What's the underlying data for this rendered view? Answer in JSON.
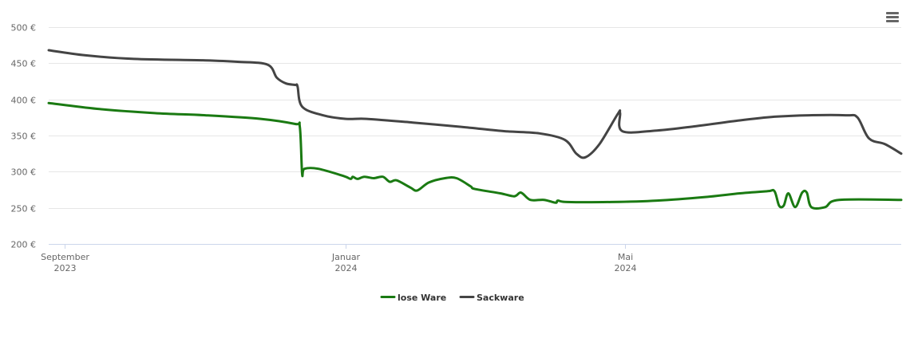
{
  "menu": {
    "icon": "hamburger-menu-icon"
  },
  "chart_data": {
    "type": "line",
    "title": "",
    "xlabel": "",
    "ylabel": "",
    "ylim": [
      200,
      500
    ],
    "y_ticks": [
      {
        "value": 500,
        "label": "500 €"
      },
      {
        "value": 450,
        "label": "450 €"
      },
      {
        "value": 400,
        "label": "400 €"
      },
      {
        "value": 350,
        "label": "350 €"
      },
      {
        "value": 300,
        "label": "300 €"
      },
      {
        "value": 250,
        "label": "250 €"
      },
      {
        "value": 200,
        "label": "200 €"
      }
    ],
    "x_range": [
      "2023-08-25",
      "2024-08-29"
    ],
    "x_ticks": [
      {
        "date": "2023-09-01",
        "line1": "September",
        "line2": "2023"
      },
      {
        "date": "2024-01-01",
        "line1": "Januar",
        "line2": "2024"
      },
      {
        "date": "2024-05-01",
        "line1": "Mai",
        "line2": "2024"
      }
    ],
    "grid": true,
    "legend_position": "bottom-center",
    "series": [
      {
        "name": "lose Ware",
        "color": "#1a7a12",
        "points": [
          [
            "2023-08-25",
            395
          ],
          [
            "2023-09-15",
            387
          ],
          [
            "2023-10-10",
            381
          ],
          [
            "2023-11-01",
            378
          ],
          [
            "2023-11-25",
            373
          ],
          [
            "2023-12-10",
            366
          ],
          [
            "2023-12-12",
            362
          ],
          [
            "2023-12-13",
            297
          ],
          [
            "2023-12-14",
            304
          ],
          [
            "2023-12-20",
            304
          ],
          [
            "2023-12-31",
            294
          ],
          [
            "2024-01-03",
            290
          ],
          [
            "2024-01-04",
            293
          ],
          [
            "2024-01-06",
            290
          ],
          [
            "2024-01-09",
            293
          ],
          [
            "2024-01-13",
            291
          ],
          [
            "2024-01-17",
            293
          ],
          [
            "2024-01-20",
            286
          ],
          [
            "2024-01-23",
            288
          ],
          [
            "2024-01-29",
            278
          ],
          [
            "2024-02-01",
            274
          ],
          [
            "2024-02-06",
            285
          ],
          [
            "2024-02-13",
            291
          ],
          [
            "2024-02-18",
            291
          ],
          [
            "2024-02-24",
            280
          ],
          [
            "2024-02-26",
            276
          ],
          [
            "2024-03-08",
            270
          ],
          [
            "2024-03-14",
            266
          ],
          [
            "2024-03-17",
            271
          ],
          [
            "2024-03-21",
            261
          ],
          [
            "2024-03-27",
            261
          ],
          [
            "2024-04-01",
            257
          ],
          [
            "2024-04-02",
            260
          ],
          [
            "2024-04-06",
            258
          ],
          [
            "2024-04-25",
            258
          ],
          [
            "2024-05-15",
            260
          ],
          [
            "2024-06-05",
            265
          ],
          [
            "2024-06-20",
            270
          ],
          [
            "2024-07-02",
            273
          ],
          [
            "2024-07-05",
            273
          ],
          [
            "2024-07-07",
            253
          ],
          [
            "2024-07-09",
            253
          ],
          [
            "2024-07-11",
            270
          ],
          [
            "2024-07-14",
            251
          ],
          [
            "2024-07-17",
            271
          ],
          [
            "2024-07-19",
            271
          ],
          [
            "2024-07-21",
            251
          ],
          [
            "2024-07-27",
            251
          ],
          [
            "2024-08-02",
            261
          ],
          [
            "2024-08-29",
            261
          ]
        ]
      },
      {
        "name": "Sackware",
        "color": "#444444",
        "points": [
          [
            "2023-08-25",
            468
          ],
          [
            "2023-09-10",
            461
          ],
          [
            "2023-10-01",
            456
          ],
          [
            "2023-11-01",
            454
          ],
          [
            "2023-11-15",
            452
          ],
          [
            "2023-11-28",
            448
          ],
          [
            "2023-12-02",
            430
          ],
          [
            "2023-12-06",
            422
          ],
          [
            "2023-12-10",
            420
          ],
          [
            "2023-12-11",
            418
          ],
          [
            "2023-12-13",
            390
          ],
          [
            "2023-12-22",
            378
          ],
          [
            "2024-01-01",
            373
          ],
          [
            "2024-01-10",
            373
          ],
          [
            "2024-01-30",
            368
          ],
          [
            "2024-02-20",
            362
          ],
          [
            "2024-03-10",
            356
          ],
          [
            "2024-03-25",
            353
          ],
          [
            "2024-04-05",
            344
          ],
          [
            "2024-04-10",
            325
          ],
          [
            "2024-04-14",
            320
          ],
          [
            "2024-04-20",
            338
          ],
          [
            "2024-04-28",
            380
          ],
          [
            "2024-04-29",
            381
          ],
          [
            "2024-04-30",
            356
          ],
          [
            "2024-05-15",
            357
          ],
          [
            "2024-06-01",
            363
          ],
          [
            "2024-06-20",
            371
          ],
          [
            "2024-07-05",
            376
          ],
          [
            "2024-07-20",
            378
          ],
          [
            "2024-08-05",
            378
          ],
          [
            "2024-08-10",
            375
          ],
          [
            "2024-08-15",
            346
          ],
          [
            "2024-08-22",
            338
          ],
          [
            "2024-08-29",
            325
          ]
        ]
      }
    ]
  }
}
